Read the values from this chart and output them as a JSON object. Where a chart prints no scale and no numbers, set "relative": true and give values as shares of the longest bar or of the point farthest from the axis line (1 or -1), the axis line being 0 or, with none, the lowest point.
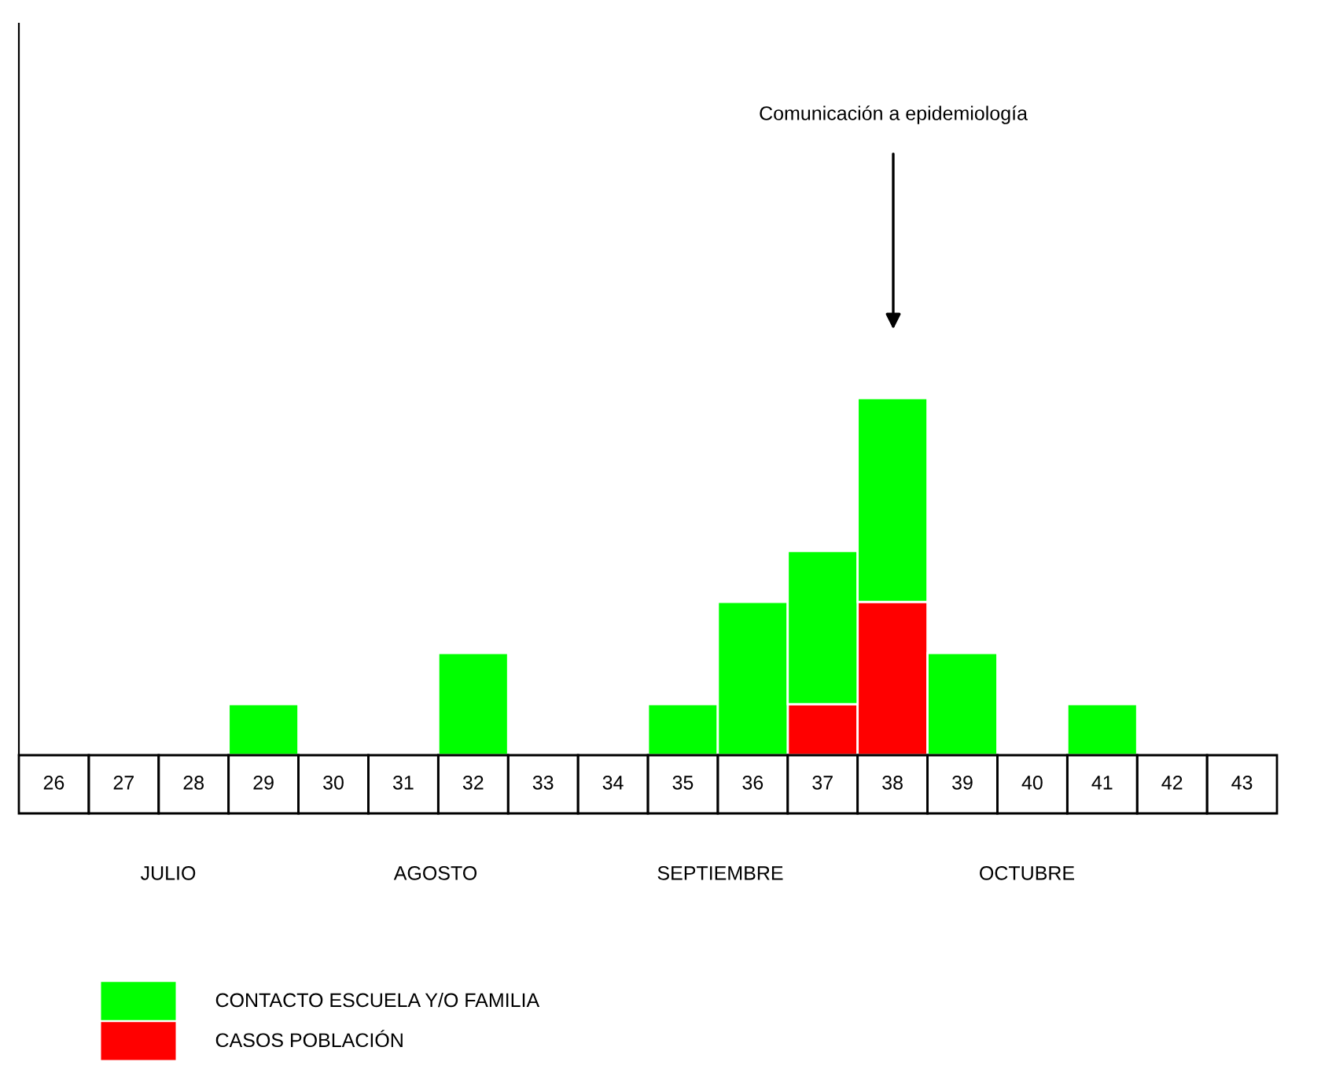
{
  "chart_data": {
    "type": "bar",
    "stacked": true,
    "relative": true,
    "categories": [
      "26",
      "27",
      "28",
      "29",
      "30",
      "31",
      "32",
      "33",
      "34",
      "35",
      "36",
      "37",
      "38",
      "39",
      "40",
      "41",
      "42",
      "43"
    ],
    "series": [
      {
        "name": "CASOS POBLACIÓN",
        "color": "#ff0000",
        "values": [
          0,
          0,
          0,
          0,
          0,
          0,
          0,
          0,
          0,
          0,
          0,
          0.143,
          0.429,
          0,
          0,
          0,
          0,
          0
        ]
      },
      {
        "name": "CONTACTO ESCUELA Y/O FAMILIA",
        "color": "#00ff00",
        "values": [
          0,
          0,
          0,
          0.143,
          0,
          0,
          0.286,
          0,
          0,
          0.143,
          0.429,
          0.429,
          0.571,
          0.286,
          0,
          0.143,
          0,
          0
        ]
      }
    ],
    "annotations": [
      "Comunicación a epidemiología",
      "JULIO",
      "AGOSTO",
      "SEPTIEMBRE",
      "OCTUBRE"
    ],
    "legend": "bottom left"
  }
}
